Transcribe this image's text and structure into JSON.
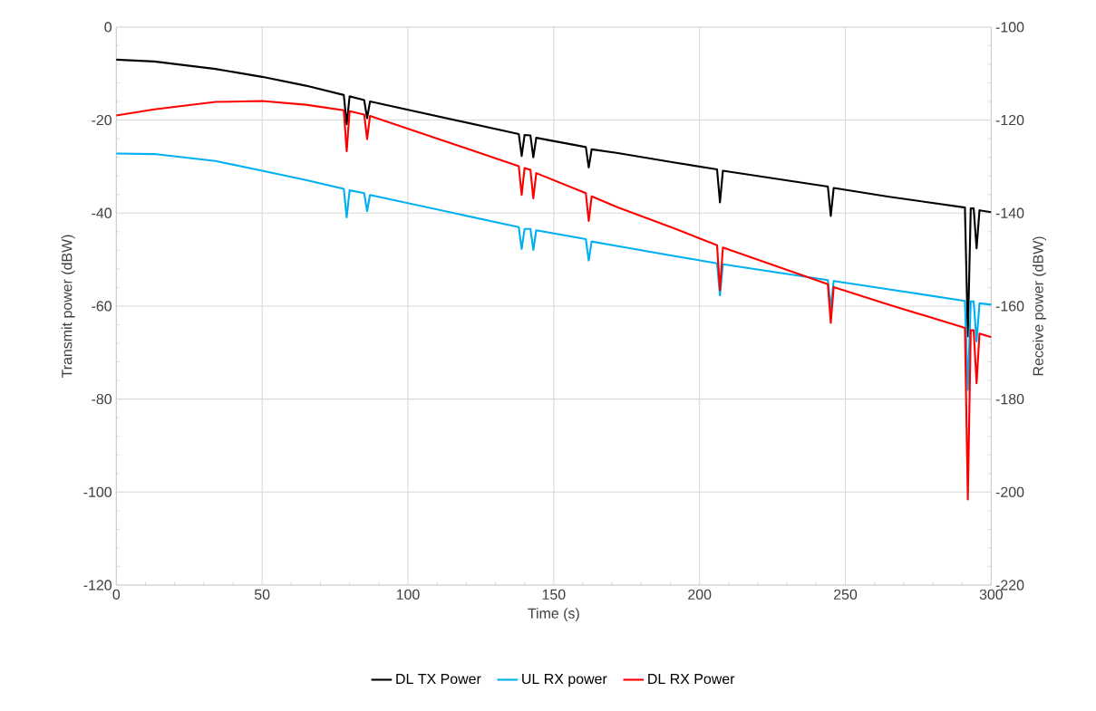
{
  "chart_data": {
    "type": "line",
    "xlabel": "Time (s)",
    "ylabel": "Transmit power (dBW)",
    "y2label": "Receive power (dBW)",
    "x": [
      0,
      13,
      34,
      50,
      65,
      78,
      79,
      80,
      85,
      86,
      87,
      138,
      139,
      140,
      142,
      143,
      144,
      161,
      162,
      163,
      172,
      191,
      206,
      207,
      208,
      244,
      245,
      246,
      265,
      291,
      292,
      293,
      294,
      295,
      296,
      300
    ],
    "series": [
      {
        "name": "DL TX Power",
        "color": "#000000",
        "axis": "y",
        "values": [
          -7,
          -7.4,
          -9.0,
          -10.7,
          -12.6,
          -14.6,
          -20.9,
          -14.9,
          -15.7,
          -19.6,
          -16.0,
          -23.0,
          -27.7,
          -23.2,
          -23.3,
          -28.0,
          -23.8,
          -25.8,
          -30.2,
          -26.3,
          -27.1,
          -29.1,
          -30.6,
          -37.7,
          -30.9,
          -34.3,
          -40.6,
          -34.6,
          -36.5,
          -38.8,
          -66.5,
          -39.0,
          -39.0,
          -47.6,
          -39.4,
          -39.8
        ]
      },
      {
        "name": "UL RX power",
        "color": "#00b0f0",
        "axis": "y2",
        "values": [
          -127.2,
          -127.3,
          -128.8,
          -130.9,
          -132.9,
          -134.8,
          -140.9,
          -135.1,
          -135.7,
          -139.6,
          -136.1,
          -143.0,
          -147.7,
          -143.4,
          -143.4,
          -147.9,
          -143.7,
          -145.6,
          -150.2,
          -146.1,
          -147.1,
          -149.2,
          -150.8,
          -157.7,
          -151.0,
          -154.4,
          -160.5,
          -154.6,
          -156.4,
          -158.9,
          -178,
          -159.0,
          -159.0,
          -167.6,
          -159.4,
          -159.7
        ]
      },
      {
        "name": "DL RX Power",
        "color": "#ff0000",
        "axis": "y2",
        "values": [
          -119.0,
          -117.7,
          -116.1,
          -115.9,
          -116.7,
          -117.9,
          -126.7,
          -118.1,
          -118.8,
          -124.1,
          -119.1,
          -129.9,
          -136.1,
          -130.3,
          -130.7,
          -136.8,
          -131.4,
          -135.7,
          -141.7,
          -136.4,
          -138.8,
          -143.2,
          -146.9,
          -156.6,
          -147.4,
          -155.3,
          -163.6,
          -155.9,
          -159.7,
          -164.7,
          -201.6,
          -165.2,
          -165.2,
          -176.6,
          -165.9,
          -166.7
        ]
      }
    ],
    "xlim": [
      0,
      300
    ],
    "xticks": [
      0,
      50,
      100,
      150,
      200,
      250,
      300
    ],
    "ylim": [
      -120,
      0
    ],
    "yticks": [
      -120,
      -100,
      -80,
      -60,
      -40,
      -20,
      0
    ],
    "y2lim": [
      -220,
      -100
    ],
    "y2ticks": [
      -220,
      -200,
      -180,
      -160,
      -140,
      -120,
      -100
    ],
    "grid": true,
    "legend": "bottom"
  }
}
